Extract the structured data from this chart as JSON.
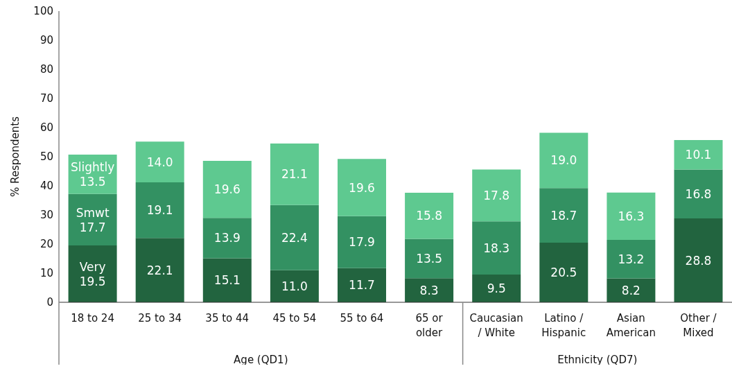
{
  "chart_data": {
    "type": "bar",
    "stacked": true,
    "ylabel": "% Respondents",
    "categories": [
      "18 to 24",
      "25 to 34",
      "35 to 44",
      "45 to 54",
      "55 to 64",
      "65 or\nolder",
      "Caucasian\n/ White",
      "Latino /\nHispanic",
      "Asian\nAmerican",
      "Other /\nMixed"
    ],
    "series": [
      {
        "name": "Very",
        "color": "#22643f",
        "values": [
          19.5,
          22.1,
          15.1,
          11.0,
          11.7,
          8.3,
          9.5,
          20.5,
          8.2,
          28.8
        ],
        "value_labels": [
          "19.5",
          "22.1",
          "15.1",
          "11.0",
          "11.7",
          "8.3",
          "9.5",
          "20.5",
          "8.2",
          "28.8"
        ]
      },
      {
        "name": "Smwt",
        "color": "#339162",
        "values": [
          17.7,
          19.1,
          13.9,
          22.4,
          17.9,
          13.5,
          18.3,
          18.7,
          13.2,
          16.8
        ],
        "value_labels": [
          "17.7",
          "19.1",
          "13.9",
          "22.4",
          "17.9",
          "13.5",
          "18.3",
          "18.7",
          "13.2",
          "16.8"
        ]
      },
      {
        "name": "Slightly",
        "color": "#5ec990",
        "values": [
          13.5,
          14.0,
          19.6,
          21.1,
          19.6,
          15.8,
          17.8,
          19.0,
          16.3,
          10.1
        ],
        "value_labels": [
          "13.5",
          "14.0",
          "19.6",
          "21.1",
          "19.6",
          "15.8",
          "17.8",
          "19.0",
          "16.3",
          "10.1"
        ]
      }
    ],
    "ylim": [
      0,
      100
    ],
    "yticks": [
      0,
      10,
      20,
      30,
      40,
      50,
      60,
      70,
      80,
      90,
      100
    ],
    "legend": false,
    "annotations": [
      "Age (QD1)",
      "Ethnicity (QD7)"
    ]
  }
}
